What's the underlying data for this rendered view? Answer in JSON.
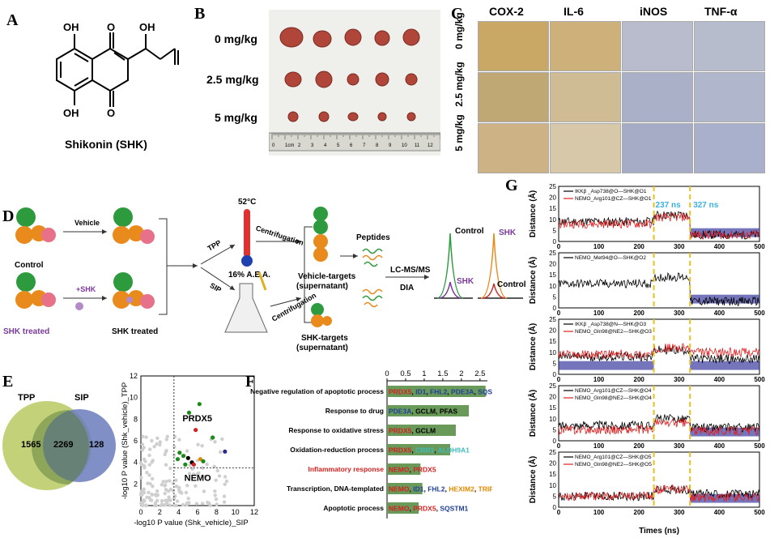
{
  "panels": {
    "A": {
      "label": "A",
      "caption": "Shikonin (SHK)",
      "atoms": [
        "OH",
        "O",
        "OH",
        "OH",
        "O"
      ]
    },
    "B": {
      "label": "B",
      "doses": [
        "0 mg/kg",
        "2.5 mg/kg",
        "5 mg/kg"
      ],
      "ruler": [
        "0",
        "1cm",
        "2",
        "3",
        "4",
        "5",
        "6",
        "7",
        "8",
        "9",
        "10",
        "11",
        "12"
      ]
    },
    "C": {
      "label": "C",
      "columns": [
        "COX-2",
        "IL-6",
        "iNOS",
        "TNF-α"
      ],
      "rows": [
        "0 mg/kg",
        "2.5 mg/kg",
        "5 mg/kg"
      ]
    },
    "D": {
      "label": "D",
      "control": "Control",
      "shk_treated_label": "SHK treated",
      "vehicle": "Vehicle",
      "plus_shk": "+SHK",
      "shk_treated_arrow": "SHK treated",
      "temp": "52°C",
      "tpp": "TPP",
      "sip": "SIP",
      "aea": "16% A.E.A.",
      "centrifugation1": "Centrifugation",
      "centrifugation2": "Centrifugation",
      "vehicle_targets": "Vehicle-targets",
      "vehicle_sup": "(supernatant)",
      "shk_targets": "SHK-targets",
      "shk_sup": "(supernatant)",
      "peptides": "Peptides",
      "lcms": "LC-MS/MS",
      "dia": "DIA",
      "chrom1": {
        "control": "Control",
        "shk": "SHK"
      },
      "chrom2": {
        "shk": "SHK",
        "control": "Control"
      }
    },
    "E": {
      "label": "E",
      "venn": {
        "tpp": "TPP",
        "sip": "SIP",
        "left_only": "1565",
        "overlap": "2269",
        "right_only": "128"
      },
      "scatter_labels": {
        "prdx5": "PRDX5",
        "nemo": "NEMO"
      }
    },
    "F": {
      "label": "F"
    },
    "G": {
      "label": "G",
      "annotations": [
        "237 ns",
        "327 ns"
      ],
      "ylabel": "Distance (Å)",
      "xlabel": "Times (ns)",
      "legends": [
        [
          "IKKβ _Asp738@O—SHK@O1",
          "NEMO_Arg101@CZ—SHK@O1"
        ],
        [
          "NEMO_Met94@O—SHK@O2"
        ],
        [
          "IKKβ _Asp738@N—SHK@O3",
          "NEMO_Gln98@NE2—SHK@O3"
        ],
        [
          "NEMO_Arg101@CZ—SHK@O4",
          "NEMO_Gln98@NE2—SHK@O4"
        ],
        [
          "NEMO_Arg101@CZ—SHK@O5",
          "NEMO_Gln98@NE2—SHK@O5"
        ]
      ]
    }
  },
  "chart_data": [
    {
      "type": "scatter",
      "id": "E-scatter",
      "xlabel": "-log10 P value (Shk_vehicle)_SIP",
      "ylabel": "-log10 P value (Shk_vehicle)_TPP",
      "xlim": [
        0,
        12
      ],
      "ylim": [
        0,
        12
      ],
      "xticks": [
        0,
        2,
        4,
        6,
        8,
        10,
        12
      ],
      "yticks": [
        2,
        4,
        6,
        8,
        10,
        12
      ],
      "thresholds": {
        "x": 3.5,
        "y": 3.5
      },
      "highlight_points": [
        {
          "x": 5.8,
          "y": 7.0,
          "color": "#d42020"
        },
        {
          "x": 5.1,
          "y": 8.6,
          "color": "#1a8a1a"
        },
        {
          "x": 6.2,
          "y": 9.4,
          "color": "#1a8a1a"
        },
        {
          "x": 7.6,
          "y": 6.3,
          "color": "#1a8a1a"
        },
        {
          "x": 8.9,
          "y": 5.0,
          "color": "#2a2a8a"
        },
        {
          "x": 4.1,
          "y": 4.9,
          "color": "#1a8a1a"
        },
        {
          "x": 4.5,
          "y": 4.6,
          "color": "#1a8a1a"
        },
        {
          "x": 3.9,
          "y": 4.3,
          "color": "#1a8a1a"
        },
        {
          "x": 5.0,
          "y": 4.4,
          "color": "#000000"
        },
        {
          "x": 5.4,
          "y": 4.0,
          "color": "#000000"
        },
        {
          "x": 6.3,
          "y": 4.3,
          "color": "#e08a00"
        },
        {
          "x": 6.6,
          "y": 4.1,
          "color": "#1a8a1a"
        },
        {
          "x": 4.7,
          "y": 3.8,
          "color": "#1a8a1a"
        },
        {
          "x": 5.6,
          "y": 3.8,
          "color": "#d42020"
        }
      ]
    },
    {
      "type": "bar",
      "id": "F-bars",
      "orientation": "horizontal",
      "xlim": [
        0,
        2.7
      ],
      "xticks": [
        0,
        0.5,
        1,
        1.5,
        2,
        2.5
      ],
      "categories": [
        "Negative regulation of apoptotic process",
        "Response to drug",
        "Response to oxidative stress",
        "Oxidation-reduction process",
        "Inflammatory response",
        "Transcription, DNA-templated",
        "Apoptotic process"
      ],
      "values": [
        2.65,
        2.2,
        1.85,
        1.7,
        0.9,
        0.95,
        0.85
      ],
      "highlight_category": "Inflammatory response",
      "genes": [
        [
          {
            "t": "PRDX5",
            "c": "#d42020"
          },
          {
            "t": ", ",
            "c": "#000"
          },
          {
            "t": "ID1",
            "c": "#1f3f9a"
          },
          {
            "t": ", ",
            "c": "#000"
          },
          {
            "t": "FHL2",
            "c": "#1f3f9a"
          },
          {
            "t": ", ",
            "c": "#000"
          },
          {
            "t": "PDE3A",
            "c": "#1f3f9a"
          },
          {
            "t": ", ",
            "c": "#000"
          },
          {
            "t": "SQSTM1",
            "c": "#1f3f9a"
          }
        ],
        [
          {
            "t": "PDE3A",
            "c": "#1f3f9a"
          },
          {
            "t": ", GCLM, PFAS",
            "c": "#000"
          }
        ],
        [
          {
            "t": "PRDX5",
            "c": "#d42020"
          },
          {
            "t": ", GCLM",
            "c": "#000"
          }
        ],
        [
          {
            "t": "PRDX5",
            "c": "#d42020"
          },
          {
            "t": ", ",
            "c": "#000"
          },
          {
            "t": "CBR1",
            "c": "#3fbcbc"
          },
          {
            "t": ", ",
            "c": "#000"
          },
          {
            "t": "ALDH9A1",
            "c": "#3fbcbc"
          }
        ],
        [
          {
            "t": "NEMO",
            "c": "#d42020"
          },
          {
            "t": ", ",
            "c": "#000"
          },
          {
            "t": "PRDX5",
            "c": "#d42020"
          }
        ],
        [
          {
            "t": "NEMO",
            "c": "#d42020"
          },
          {
            "t": ", ",
            "c": "#000"
          },
          {
            "t": "ID1",
            "c": "#1f3f9a"
          },
          {
            "t": ", ",
            "c": "#000"
          },
          {
            "t": "FHL2",
            "c": "#1f3f9a"
          },
          {
            "t": ", ",
            "c": "#000"
          },
          {
            "t": "HEXIM2",
            "c": "#e08a00"
          },
          {
            "t": ", ",
            "c": "#000"
          },
          {
            "t": "TRIP6",
            "c": "#e08a00"
          },
          {
            "t": ", ",
            "c": "#000"
          },
          {
            "t": "TXLNG",
            "c": "#e08a00"
          }
        ],
        [
          {
            "t": "NEMO",
            "c": "#d42020"
          },
          {
            "t": ", ",
            "c": "#000"
          },
          {
            "t": "PRDX5",
            "c": "#d42020"
          },
          {
            "t": ", ",
            "c": "#000"
          },
          {
            "t": "SQSTM1",
            "c": "#1f3f9a"
          }
        ]
      ]
    },
    {
      "type": "line",
      "id": "G-traces",
      "xlim": [
        0,
        500
      ],
      "ylim": [
        0,
        25
      ],
      "xticks": [
        0,
        100,
        200,
        300,
        400,
        500
      ],
      "yticks": [
        0,
        5,
        10,
        15,
        20,
        25
      ],
      "vlines": [
        237,
        327
      ]
    }
  ]
}
